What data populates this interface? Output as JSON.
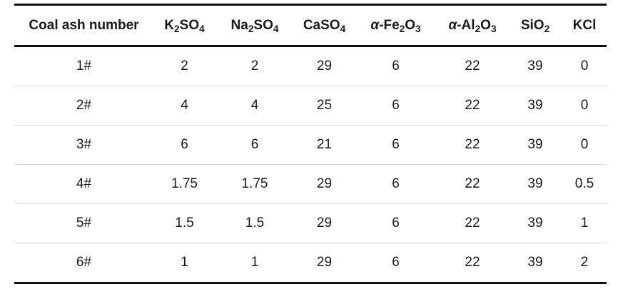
{
  "table": {
    "headers": [
      {
        "parts": [
          "Coal ash number"
        ],
        "greek": ""
      },
      {
        "parts": [
          "K",
          "2",
          "SO",
          "4"
        ],
        "greek": ""
      },
      {
        "parts": [
          "Na",
          "2",
          "SO",
          "4"
        ],
        "greek": ""
      },
      {
        "parts": [
          "CaSO",
          "4"
        ],
        "greek": ""
      },
      {
        "parts": [
          "-Fe",
          "2",
          "O",
          "3"
        ],
        "greek": "α"
      },
      {
        "parts": [
          "-Al",
          "2",
          "O",
          "3"
        ],
        "greek": "α"
      },
      {
        "parts": [
          "SiO",
          "2"
        ],
        "greek": ""
      },
      {
        "parts": [
          "KCl"
        ],
        "greek": ""
      }
    ],
    "rows": [
      [
        "1#",
        "2",
        "2",
        "29",
        "6",
        "22",
        "39",
        "0"
      ],
      [
        "2#",
        "4",
        "4",
        "25",
        "6",
        "22",
        "39",
        "0"
      ],
      [
        "3#",
        "6",
        "6",
        "21",
        "6",
        "22",
        "39",
        "0"
      ],
      [
        "4#",
        "1.75",
        "1.75",
        "29",
        "6",
        "22",
        "39",
        "0.5"
      ],
      [
        "5#",
        "1.5",
        "1.5",
        "29",
        "6",
        "22",
        "39",
        "1"
      ],
      [
        "6#",
        "1",
        "1",
        "29",
        "6",
        "22",
        "39",
        "2"
      ]
    ]
  }
}
